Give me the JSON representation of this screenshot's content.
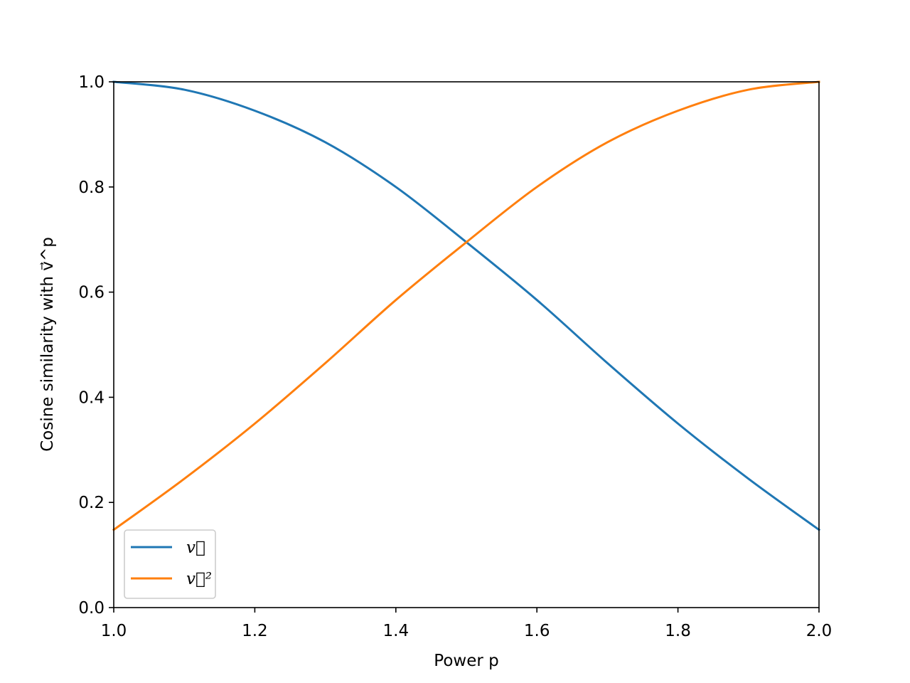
{
  "chart_data": {
    "type": "line",
    "xlabel": "Power p",
    "ylabel": "Cosine similarity with v⃗^p",
    "xlim": [
      1.0,
      2.0
    ],
    "ylim": [
      0.0,
      1.0
    ],
    "xticks": [
      "1.0",
      "1.2",
      "1.4",
      "1.6",
      "1.8",
      "2.0"
    ],
    "yticks": [
      "0.0",
      "0.2",
      "0.4",
      "0.6",
      "0.8",
      "1.0"
    ],
    "grid": false,
    "legend": "lower-left",
    "x": [
      1.0,
      1.1,
      1.2,
      1.3,
      1.4,
      1.5,
      1.6,
      1.7,
      1.8,
      1.9,
      2.0
    ],
    "series": [
      {
        "name": "v⃗",
        "color": "#1f77b4",
        "values": [
          1.0,
          0.985,
          0.945,
          0.885,
          0.8,
          0.695,
          0.585,
          0.465,
          0.35,
          0.245,
          0.148
        ]
      },
      {
        "name": "v⃗²",
        "color": "#ff7f0e",
        "values": [
          0.148,
          0.245,
          0.35,
          0.465,
          0.585,
          0.695,
          0.8,
          0.885,
          0.945,
          0.985,
          1.0
        ]
      }
    ]
  }
}
